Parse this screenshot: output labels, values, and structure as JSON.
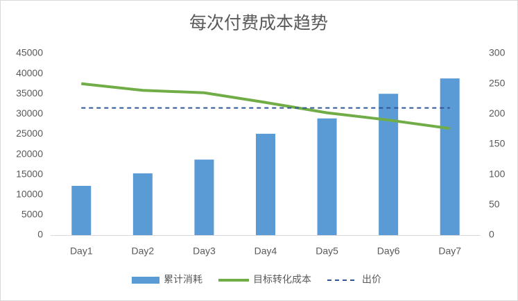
{
  "chart_data": {
    "type": "combo",
    "title": "每次付费成本趋势",
    "categories": [
      "Day1",
      "Day2",
      "Day3",
      "Day4",
      "Day5",
      "Day6",
      "Day7"
    ],
    "series": [
      {
        "name": "累计消耗",
        "type": "bar",
        "color": "#5b9bd5",
        "values": [
          12200,
          15300,
          18700,
          25100,
          28900,
          35000,
          38800
        ]
      },
      {
        "name": "目标转化成本",
        "type": "line",
        "axis": "y2",
        "color": "#70ad47",
        "values": [
          250,
          239,
          235,
          219,
          202,
          190,
          176
        ]
      },
      {
        "name": "出价",
        "type": "line",
        "axis": "y2",
        "dashed": true,
        "color": "#2f5597",
        "values": [
          210,
          210,
          210,
          210,
          210,
          210,
          210
        ]
      }
    ],
    "ylim": [
      0,
      45000
    ],
    "yticks": [
      0,
      5000,
      10000,
      15000,
      20000,
      25000,
      30000,
      35000,
      40000,
      45000
    ],
    "y2lim": [
      0,
      300
    ],
    "y2ticks": [
      0,
      50,
      100,
      150,
      200,
      250,
      300
    ],
    "grid": false,
    "legend": "bottom"
  }
}
